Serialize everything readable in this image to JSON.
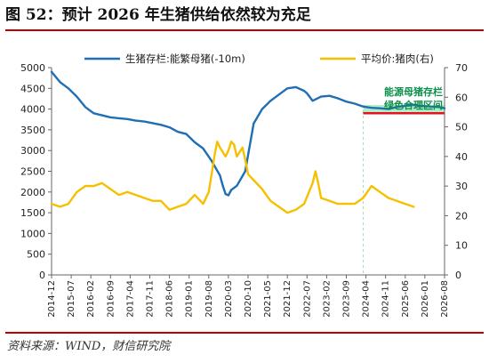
{
  "title": "图 52：预计 2026 年生猪供给依然较为充足",
  "source": "资料来源：WIND，财信研究院",
  "chart_data": {
    "type": "line",
    "series": [
      {
        "name": "生猪存栏:能繁母猪(-10m)",
        "axis": "left",
        "color": "#1f6fb5",
        "x": [
          "2014-12",
          "2015-03",
          "2015-06",
          "2015-09",
          "2015-12",
          "2016-03",
          "2016-06",
          "2016-09",
          "2016-12",
          "2017-03",
          "2017-06",
          "2017-09",
          "2017-12",
          "2018-03",
          "2018-06",
          "2018-09",
          "2018-12",
          "2019-03",
          "2019-06",
          "2019-09",
          "2019-12",
          "2020-01",
          "2020-02",
          "2020-03",
          "2020-04",
          "2020-06",
          "2020-09",
          "2020-12",
          "2021-03",
          "2021-06",
          "2021-09",
          "2021-12",
          "2022-03",
          "2022-06",
          "2022-07",
          "2022-09",
          "2022-12",
          "2023-03",
          "2023-06",
          "2023-09",
          "2023-12",
          "2024-03",
          "2024-06",
          "2024-09",
          "2024-12",
          "2025-03",
          "2025-06",
          "2025-09",
          "2025-12",
          "2026-03",
          "2026-06",
          "2026-08"
        ],
        "values": [
          4900,
          4650,
          4500,
          4300,
          4050,
          3900,
          3850,
          3800,
          3780,
          3760,
          3720,
          3700,
          3660,
          3620,
          3560,
          3450,
          3400,
          3200,
          3050,
          2750,
          2400,
          2150,
          1950,
          1920,
          2050,
          2150,
          2500,
          3650,
          4000,
          4200,
          4350,
          4500,
          4530,
          4440,
          4380,
          4200,
          4300,
          4320,
          4260,
          4180,
          4130,
          4060,
          4030,
          4020,
          4000,
          4050,
          4080,
          4100,
          4080,
          4060,
          4050,
          4020
        ]
      },
      {
        "name": "平均价:猪肉(右)",
        "axis": "right",
        "color": "#f5c000",
        "x": [
          "2014-12",
          "2015-03",
          "2015-06",
          "2015-09",
          "2015-12",
          "2016-03",
          "2016-06",
          "2016-09",
          "2016-12",
          "2017-03",
          "2017-06",
          "2017-09",
          "2017-12",
          "2018-03",
          "2018-06",
          "2018-09",
          "2018-12",
          "2019-03",
          "2019-06",
          "2019-08",
          "2019-09",
          "2019-10",
          "2019-11",
          "2019-12",
          "2020-02",
          "2020-03",
          "2020-04",
          "2020-05",
          "2020-06",
          "2020-08",
          "2020-09",
          "2020-10",
          "2020-12",
          "2021-03",
          "2021-06",
          "2021-09",
          "2021-12",
          "2022-03",
          "2022-06",
          "2022-09",
          "2022-10",
          "2022-11",
          "2022-12",
          "2023-03",
          "2023-06",
          "2023-09",
          "2023-12",
          "2024-03",
          "2024-06",
          "2024-09",
          "2024-12",
          "2025-03",
          "2025-06",
          "2025-09"
        ],
        "values": [
          24,
          23,
          24,
          28,
          30,
          30,
          31,
          29,
          27,
          28,
          27,
          26,
          25,
          25,
          22,
          23,
          24,
          27,
          24,
          28,
          34,
          40,
          45,
          43,
          40,
          42,
          45,
          44,
          40,
          43,
          39,
          34,
          32,
          29,
          25,
          23,
          21,
          22,
          24,
          31,
          35,
          31,
          26,
          25,
          24,
          24,
          24,
          26,
          30,
          28,
          26,
          25,
          24,
          23
        ]
      }
    ],
    "y_left": {
      "ticks": [
        0,
        500,
        1000,
        1500,
        2000,
        2500,
        3000,
        3500,
        4000,
        4500,
        5000
      ],
      "range": [
        0,
        5000
      ]
    },
    "y_right": {
      "ticks": [
        0,
        10,
        20,
        30,
        40,
        50,
        60,
        70
      ],
      "range": [
        0,
        70
      ]
    },
    "x_ticks": [
      "2014-12",
      "2015-07",
      "2016-02",
      "2016-09",
      "2017-04",
      "2017-11",
      "2018-06",
      "2019-01",
      "2019-08",
      "2020-03",
      "2020-10",
      "2021-05",
      "2021-12",
      "2022-07",
      "2023-02",
      "2023-09",
      "2024-04",
      "2024-11",
      "2025-06",
      "2026-01",
      "2026-08"
    ],
    "annotation": {
      "lines": [
        "能源母猪存栏",
        "绿色合理区间"
      ],
      "band_left": [
        3900,
        4100
      ],
      "band_time": [
        "2024-03",
        "2026-08"
      ],
      "reference_value": 3900,
      "band_color": "#9ee6b8",
      "ref_color": "#e0141e"
    },
    "legend_position": "top",
    "grid": false
  }
}
